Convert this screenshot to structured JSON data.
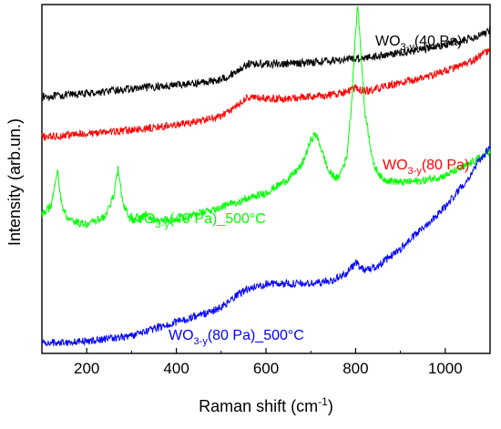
{
  "chart_data": {
    "type": "line",
    "xlabel": "Raman shift (cm",
    "xlabel_sup": "-1",
    "xlabel_end": ")",
    "ylabel": "Intensity  (arb.un.)",
    "xlim": [
      100,
      1100
    ],
    "xticks": [
      200,
      400,
      600,
      800,
      1000
    ],
    "yticks_shown": false,
    "series": [
      {
        "name": "WO3-y(40 Pa)",
        "label_parts": [
          "WO",
          "3-y",
          "(40 Pa)"
        ],
        "color": "#000000",
        "x": [
          100,
          200,
          300,
          400,
          450,
          500,
          530,
          560,
          600,
          650,
          700,
          750,
          800,
          850,
          900,
          950,
          1000,
          1050,
          1080,
          1100
        ],
        "y": [
          0.735,
          0.745,
          0.758,
          0.77,
          0.775,
          0.785,
          0.805,
          0.83,
          0.83,
          0.83,
          0.835,
          0.84,
          0.845,
          0.853,
          0.862,
          0.872,
          0.885,
          0.9,
          0.915,
          0.925
        ]
      },
      {
        "name": "WO3-y(80 Pa)",
        "label_parts": [
          "WO",
          "3-y",
          "(80 Pa)"
        ],
        "color": "#ff0000",
        "x": [
          100,
          200,
          300,
          400,
          450,
          500,
          530,
          560,
          600,
          650,
          700,
          750,
          780,
          800,
          810,
          830,
          850,
          900,
          950,
          1000,
          1050,
          1080,
          1100
        ],
        "y": [
          0.62,
          0.63,
          0.64,
          0.655,
          0.665,
          0.68,
          0.705,
          0.735,
          0.73,
          0.73,
          0.735,
          0.742,
          0.75,
          0.76,
          0.755,
          0.752,
          0.76,
          0.775,
          0.79,
          0.81,
          0.83,
          0.855,
          0.87
        ]
      },
      {
        "name": "WO3-y(40 Pa)_500°C",
        "label_parts": [
          "WO",
          "3-y",
          "(40 Pa)_500°C"
        ],
        "color": "#00ff00",
        "x": [
          100,
          120,
          135,
          145,
          160,
          200,
          240,
          260,
          270,
          280,
          300,
          320,
          330,
          350,
          400,
          450,
          500,
          550,
          600,
          650,
          680,
          700,
          710,
          720,
          740,
          760,
          780,
          790,
          800,
          805,
          810,
          820,
          840,
          860,
          900,
          950,
          1000,
          1050,
          1100
        ],
        "y": [
          0.4,
          0.42,
          0.52,
          0.42,
          0.38,
          0.37,
          0.39,
          0.45,
          0.53,
          0.43,
          0.38,
          0.385,
          0.4,
          0.38,
          0.385,
          0.4,
          0.42,
          0.44,
          0.46,
          0.5,
          0.54,
          0.61,
          0.63,
          0.6,
          0.52,
          0.5,
          0.56,
          0.7,
          0.92,
          1.0,
          0.9,
          0.7,
          0.54,
          0.5,
          0.49,
          0.495,
          0.51,
          0.54,
          0.58
        ]
      },
      {
        "name": "WO3-y(80 Pa)_500°C",
        "label_parts": [
          "WO",
          "3-y",
          "(80 Pa)_500°C"
        ],
        "color": "#0000ff",
        "x": [
          100,
          200,
          300,
          400,
          450,
          500,
          550,
          600,
          650,
          700,
          750,
          780,
          800,
          810,
          820,
          840,
          860,
          900,
          950,
          1000,
          1050,
          1080,
          1100
        ],
        "y": [
          0.03,
          0.035,
          0.05,
          0.09,
          0.11,
          0.13,
          0.18,
          0.2,
          0.2,
          0.2,
          0.21,
          0.23,
          0.26,
          0.25,
          0.24,
          0.245,
          0.26,
          0.3,
          0.36,
          0.42,
          0.5,
          0.56,
          0.59
        ]
      }
    ],
    "label_anchors": [
      "WO3-y(40 Pa)",
      "WO3-y(80 Pa)",
      "WO3-y(40 Pa)_500°C",
      "WO3-y(80 Pa)_500°C"
    ]
  }
}
